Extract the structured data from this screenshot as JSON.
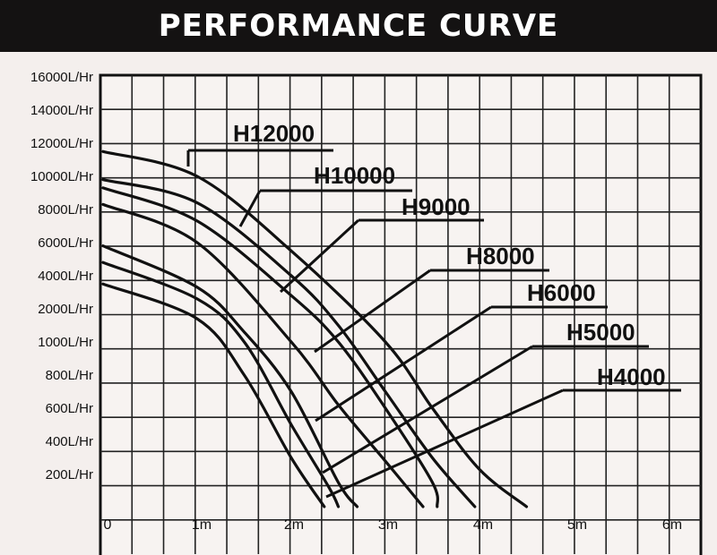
{
  "chart_data": {
    "type": "line",
    "title": "PERFORMANCE CURVE",
    "xlabel": "",
    "ylabel": "",
    "x_ticks": [
      "0",
      "1m",
      "2m",
      "3m",
      "4m",
      "5m",
      "6m"
    ],
    "xlim": [
      0,
      6.35
    ],
    "y_ticks": [
      "16000L/Hr",
      "14000L/Hr",
      "12000L/Hr",
      "10000L/Hr",
      "8000L/Hr",
      "6000L/Hr",
      "4000L/Hr",
      "2000L/Hr",
      "1000L/Hr",
      "800L/Hr",
      "600L/Hr",
      "400L/Hr",
      "200L/Hr"
    ],
    "y_scale": "nonuniform-categorical",
    "grid": true,
    "series": [
      {
        "name": "H12000",
        "label": "H12000",
        "points": [
          [
            0,
            11500
          ],
          [
            1,
            10000
          ],
          [
            2,
            5500
          ],
          [
            3,
            1000
          ],
          [
            3.5,
            600
          ],
          [
            4.0,
            230
          ],
          [
            4.5,
            0
          ]
        ]
      },
      {
        "name": "H10000",
        "label": "H10000",
        "points": [
          [
            0,
            9800
          ],
          [
            1,
            8400
          ],
          [
            2,
            4000
          ],
          [
            2.5,
            1500
          ],
          [
            3,
            700
          ],
          [
            3.5,
            300
          ],
          [
            3.95,
            0
          ]
        ]
      },
      {
        "name": "H9000",
        "label": "H9000",
        "points": [
          [
            0,
            9300
          ],
          [
            1,
            7300
          ],
          [
            2,
            2800
          ],
          [
            2.5,
            1000
          ],
          [
            3,
            600
          ],
          [
            3.5,
            150
          ],
          [
            3.55,
            0
          ]
        ]
      },
      {
        "name": "H8000",
        "label": "H8000",
        "points": [
          [
            0,
            8300
          ],
          [
            1,
            6000
          ],
          [
            2,
            1000
          ],
          [
            2.5,
            620
          ],
          [
            3,
            280
          ],
          [
            3.4,
            0
          ]
        ]
      },
      {
        "name": "H6000",
        "label": "H6000",
        "points": [
          [
            0,
            5800
          ],
          [
            1,
            3300
          ],
          [
            1.5,
            1300
          ],
          [
            2,
            700
          ],
          [
            2.5,
            150
          ],
          [
            2.7,
            0
          ]
        ]
      },
      {
        "name": "H5000",
        "label": "H5000",
        "points": [
          [
            0,
            4800
          ],
          [
            1,
            2600
          ],
          [
            1.5,
            1000
          ],
          [
            2,
            500
          ],
          [
            2.4,
            120
          ],
          [
            2.5,
            0
          ]
        ]
      },
      {
        "name": "H4000",
        "label": "H4000",
        "points": [
          [
            0,
            3500
          ],
          [
            1,
            1700
          ],
          [
            1.5,
            800
          ],
          [
            2,
            300
          ],
          [
            2.35,
            0
          ]
        ]
      }
    ]
  }
}
